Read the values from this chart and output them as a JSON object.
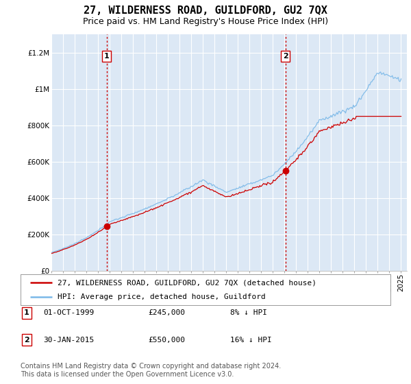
{
  "title": "27, WILDERNESS ROAD, GUILDFORD, GU2 7QX",
  "subtitle": "Price paid vs. HM Land Registry's House Price Index (HPI)",
  "ylim": [
    0,
    1300000
  ],
  "yticks": [
    0,
    200000,
    400000,
    600000,
    800000,
    1000000,
    1200000
  ],
  "ytick_labels": [
    "£0",
    "£200K",
    "£400K",
    "£600K",
    "£800K",
    "£1M",
    "£1.2M"
  ],
  "bg_color": "#dce8f5",
  "grid_color": "#ffffff",
  "line1_color": "#cc0000",
  "line2_color": "#7ab8e8",
  "sale1_year": 1999.75,
  "sale1_price": 245000,
  "sale1_label": "1",
  "sale1_date": "01-OCT-1999",
  "sale1_pct": "8% ↓ HPI",
  "sale2_year": 2015.08,
  "sale2_price": 550000,
  "sale2_label": "2",
  "sale2_date": "30-JAN-2015",
  "sale2_pct": "16% ↓ HPI",
  "vline_color": "#cc0000",
  "legend1_label": "27, WILDERNESS ROAD, GUILDFORD, GU2 7QX (detached house)",
  "legend2_label": "HPI: Average price, detached house, Guildford",
  "footer": "Contains HM Land Registry data © Crown copyright and database right 2024.\nThis data is licensed under the Open Government Licence v3.0.",
  "title_fontsize": 11,
  "subtitle_fontsize": 9,
  "tick_fontsize": 7.5,
  "legend_fontsize": 8,
  "footer_fontsize": 7
}
